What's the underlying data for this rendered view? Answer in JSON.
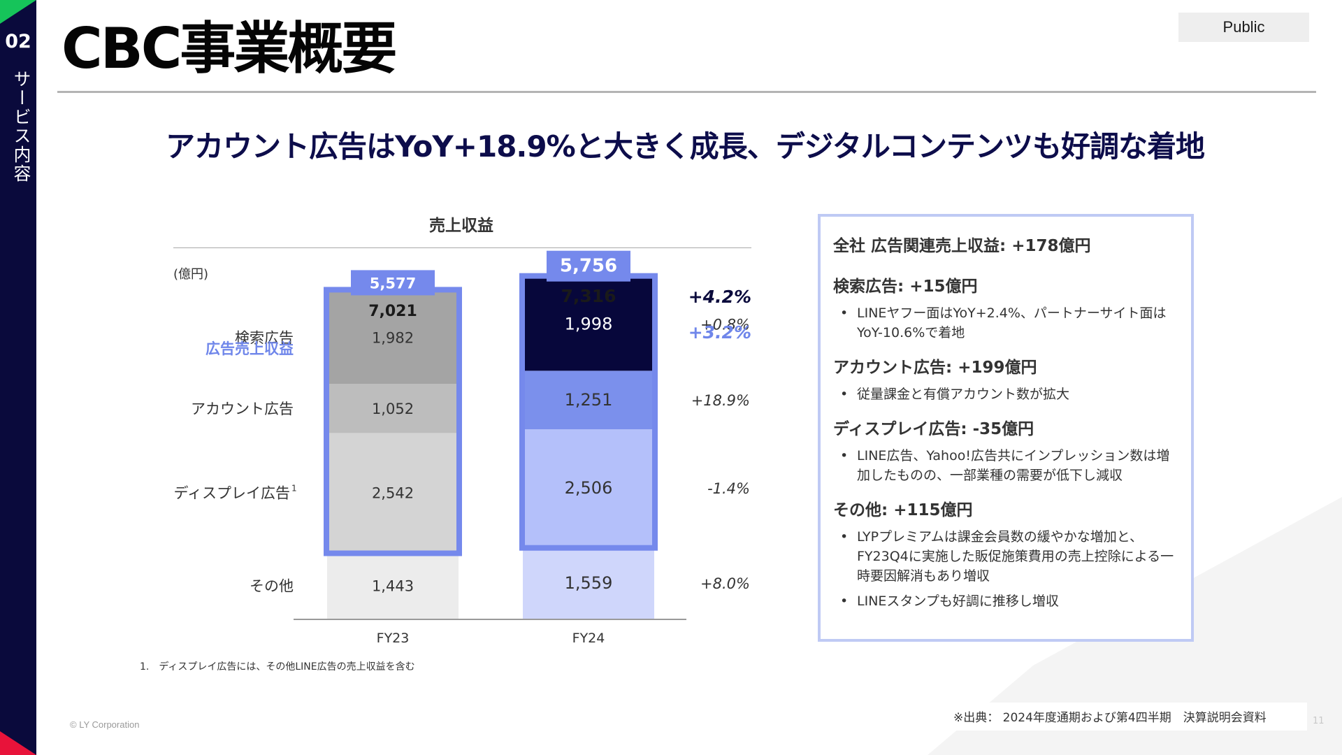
{
  "sidebar": {
    "number": "02",
    "section": "サービス内容"
  },
  "header": {
    "title": "CBC事業概要",
    "badge": "Public"
  },
  "headline": "アカウント広告はYoY+18.9%と大きく成長、デジタルコンテンツも好調な着地",
  "chart_data": {
    "type": "bar",
    "title": "売上収益",
    "unit": "(億円)",
    "categories": [
      "FY23",
      "FY24"
    ],
    "series": [
      {
        "name": "その他",
        "values": [
          1443,
          1559
        ],
        "change": "+8.0%"
      },
      {
        "name": "ディスプレイ広告",
        "values": [
          2542,
          2506
        ],
        "change": "-1.4%"
      },
      {
        "name": "アカウント広告",
        "values": [
          1052,
          1251
        ],
        "change": "+18.9%"
      },
      {
        "name": "検索広告",
        "values": [
          1982,
          1998
        ],
        "change": "+0.8%"
      }
    ],
    "row_labels": {
      "その他": "その他",
      "ディスプレイ広告": "ディスプレイ広告",
      "ディスプレイ広告_sup": "1",
      "アカウント広告": "アカウント広告",
      "検索広告": "検索広告"
    },
    "ad_revenue": {
      "label": "広告売上収益",
      "values": [
        5577,
        5756
      ],
      "change": "+3.2%"
    },
    "totals": {
      "values": [
        7021,
        7316
      ],
      "change": "+4.2%"
    },
    "colors": {
      "FY23": [
        "#ececec",
        "#d4d4d4",
        "#bdbdbd",
        "#a4a4a4"
      ],
      "FY24": [
        "#cfd6fb",
        "#b4c0fa",
        "#7b90ec",
        "#07073b"
      ],
      "ad_outline": "#7589ec",
      "label_accent": "#6f86ea"
    },
    "ylim": [
      0,
      7316
    ]
  },
  "footnote": "1.　ディスプレイ広告には、その他LINE広告の売上収益を含む",
  "info": {
    "total": "全社 広告関連売上収益: +178億円",
    "sections": [
      {
        "heading": "検索広告: +15億円",
        "bullets": [
          "LINEヤフー面はYoY+2.4%、パートナーサイト面はYoY-10.6%で着地"
        ]
      },
      {
        "heading": "アカウント広告: +199億円",
        "bullets": [
          "従量課金と有償アカウント数が拡大"
        ]
      },
      {
        "heading": "ディスプレイ広告: -35億円",
        "bullets": [
          "LINE広告、Yahoo!広告共にインプレッション数は増加したものの、一部業種の需要が低下し減収"
        ]
      },
      {
        "heading": "その他: +115億円",
        "bullets": [
          "LYPプレミアムは課金会員数の緩やかな増加と、FY23Q4に実施した販促施策費用の売上控除による一時要因解消もあり増収",
          "LINEスタンプも好調に推移し増収"
        ]
      }
    ]
  },
  "footer": {
    "copyright": "© LY Corporation",
    "source": "※出典：  2024年度通期および第4四半期　決算説明会資料",
    "page": "11"
  }
}
